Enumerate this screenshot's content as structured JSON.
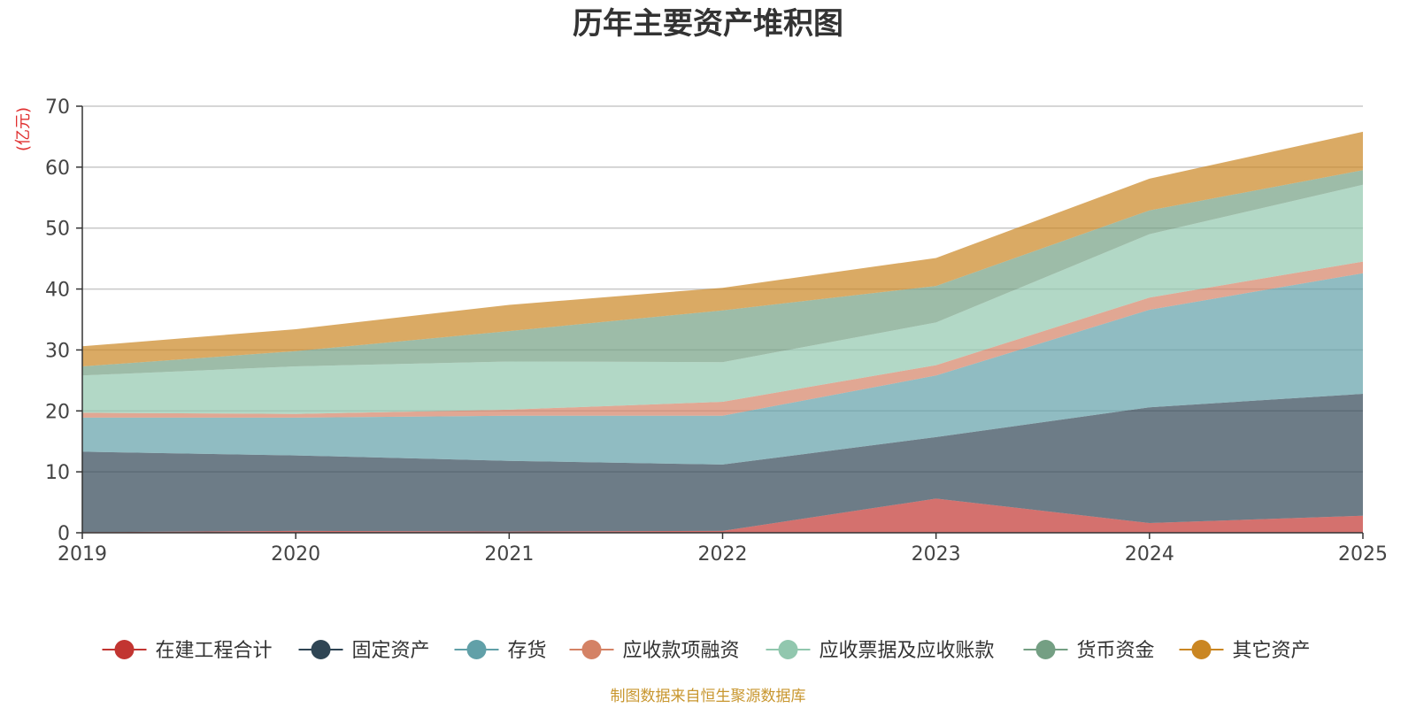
{
  "chart_data": {
    "type": "area",
    "stacked": true,
    "title": "历年主要资产堆积图",
    "ylabel": "(亿元)",
    "xlabel": "",
    "categories": [
      "2019",
      "2020",
      "2021",
      "2022",
      "2023",
      "2024",
      "2025"
    ],
    "ylim": [
      0,
      70
    ],
    "yticks": [
      0,
      10,
      20,
      30,
      40,
      50,
      60,
      70
    ],
    "grid": true,
    "legend_position": "bottom",
    "source": "制图数据来自恒生聚源数据库",
    "series": [
      {
        "name": "在建工程合计",
        "color": "#c23531",
        "values": [
          0.1,
          0.3,
          0.2,
          0.3,
          5.6,
          1.6,
          2.8
        ]
      },
      {
        "name": "固定资产",
        "color": "#2f4554",
        "values": [
          13.2,
          12.4,
          11.6,
          10.9,
          10.1,
          19.0,
          20.0
        ]
      },
      {
        "name": "存货",
        "color": "#61a0a8",
        "values": [
          5.6,
          6.2,
          7.4,
          8.0,
          10.1,
          16.0,
          19.8
        ]
      },
      {
        "name": "应收款项融资",
        "color": "#d48265",
        "values": [
          0.8,
          0.6,
          1.0,
          2.3,
          1.7,
          2.0,
          1.9
        ]
      },
      {
        "name": "应收票据及应收账款",
        "color": "#91c7ae",
        "values": [
          6.1,
          7.8,
          7.9,
          6.5,
          7.0,
          10.4,
          12.6
        ]
      },
      {
        "name": "货币资金",
        "color": "#749f83",
        "values": [
          1.5,
          2.5,
          5.0,
          8.5,
          6.0,
          3.9,
          2.4
        ]
      },
      {
        "name": "其它资产",
        "color": "#ca8622",
        "values": [
          3.3,
          3.6,
          4.3,
          3.7,
          4.6,
          5.2,
          6.3
        ]
      }
    ]
  }
}
